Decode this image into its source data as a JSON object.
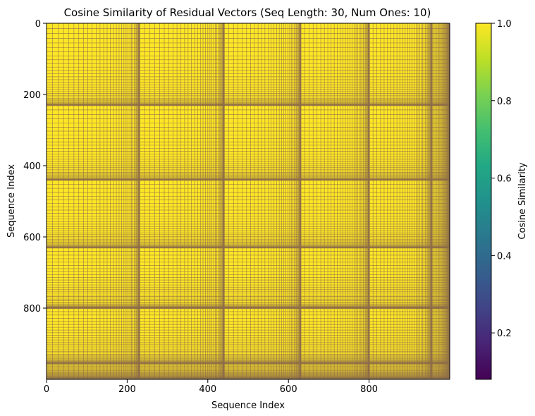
{
  "chart_data": {
    "type": "heatmap",
    "title": "Cosine Similarity of Residual Vectors (Seq Length: 30, Num Ones: 10)",
    "xlabel": "Sequence Index",
    "ylabel": "Sequence Index",
    "colorbar_label": "Cosine Similarity",
    "xlim": [
      0,
      1000
    ],
    "ylim": [
      1000,
      0
    ],
    "x_ticks": [
      "0",
      "200",
      "400",
      "600",
      "800"
    ],
    "y_ticks": [
      "0",
      "200",
      "400",
      "600",
      "800"
    ],
    "colorbar_range": [
      0.08,
      1.0
    ],
    "colorbar_ticks": [
      "0.2",
      "0.4",
      "0.6",
      "0.8",
      "1.0"
    ],
    "colormap": "viridis",
    "cell_value": 1.0,
    "cell_color": "#fde725",
    "grid_line_color": "#8b6a4a",
    "segments": [
      {
        "start": 0,
        "end": 230
      },
      {
        "start": 230,
        "end": 440
      },
      {
        "start": 440,
        "end": 630
      },
      {
        "start": 630,
        "end": 800
      },
      {
        "start": 800,
        "end": 955
      },
      {
        "start": 955,
        "end": 1000
      }
    ]
  }
}
